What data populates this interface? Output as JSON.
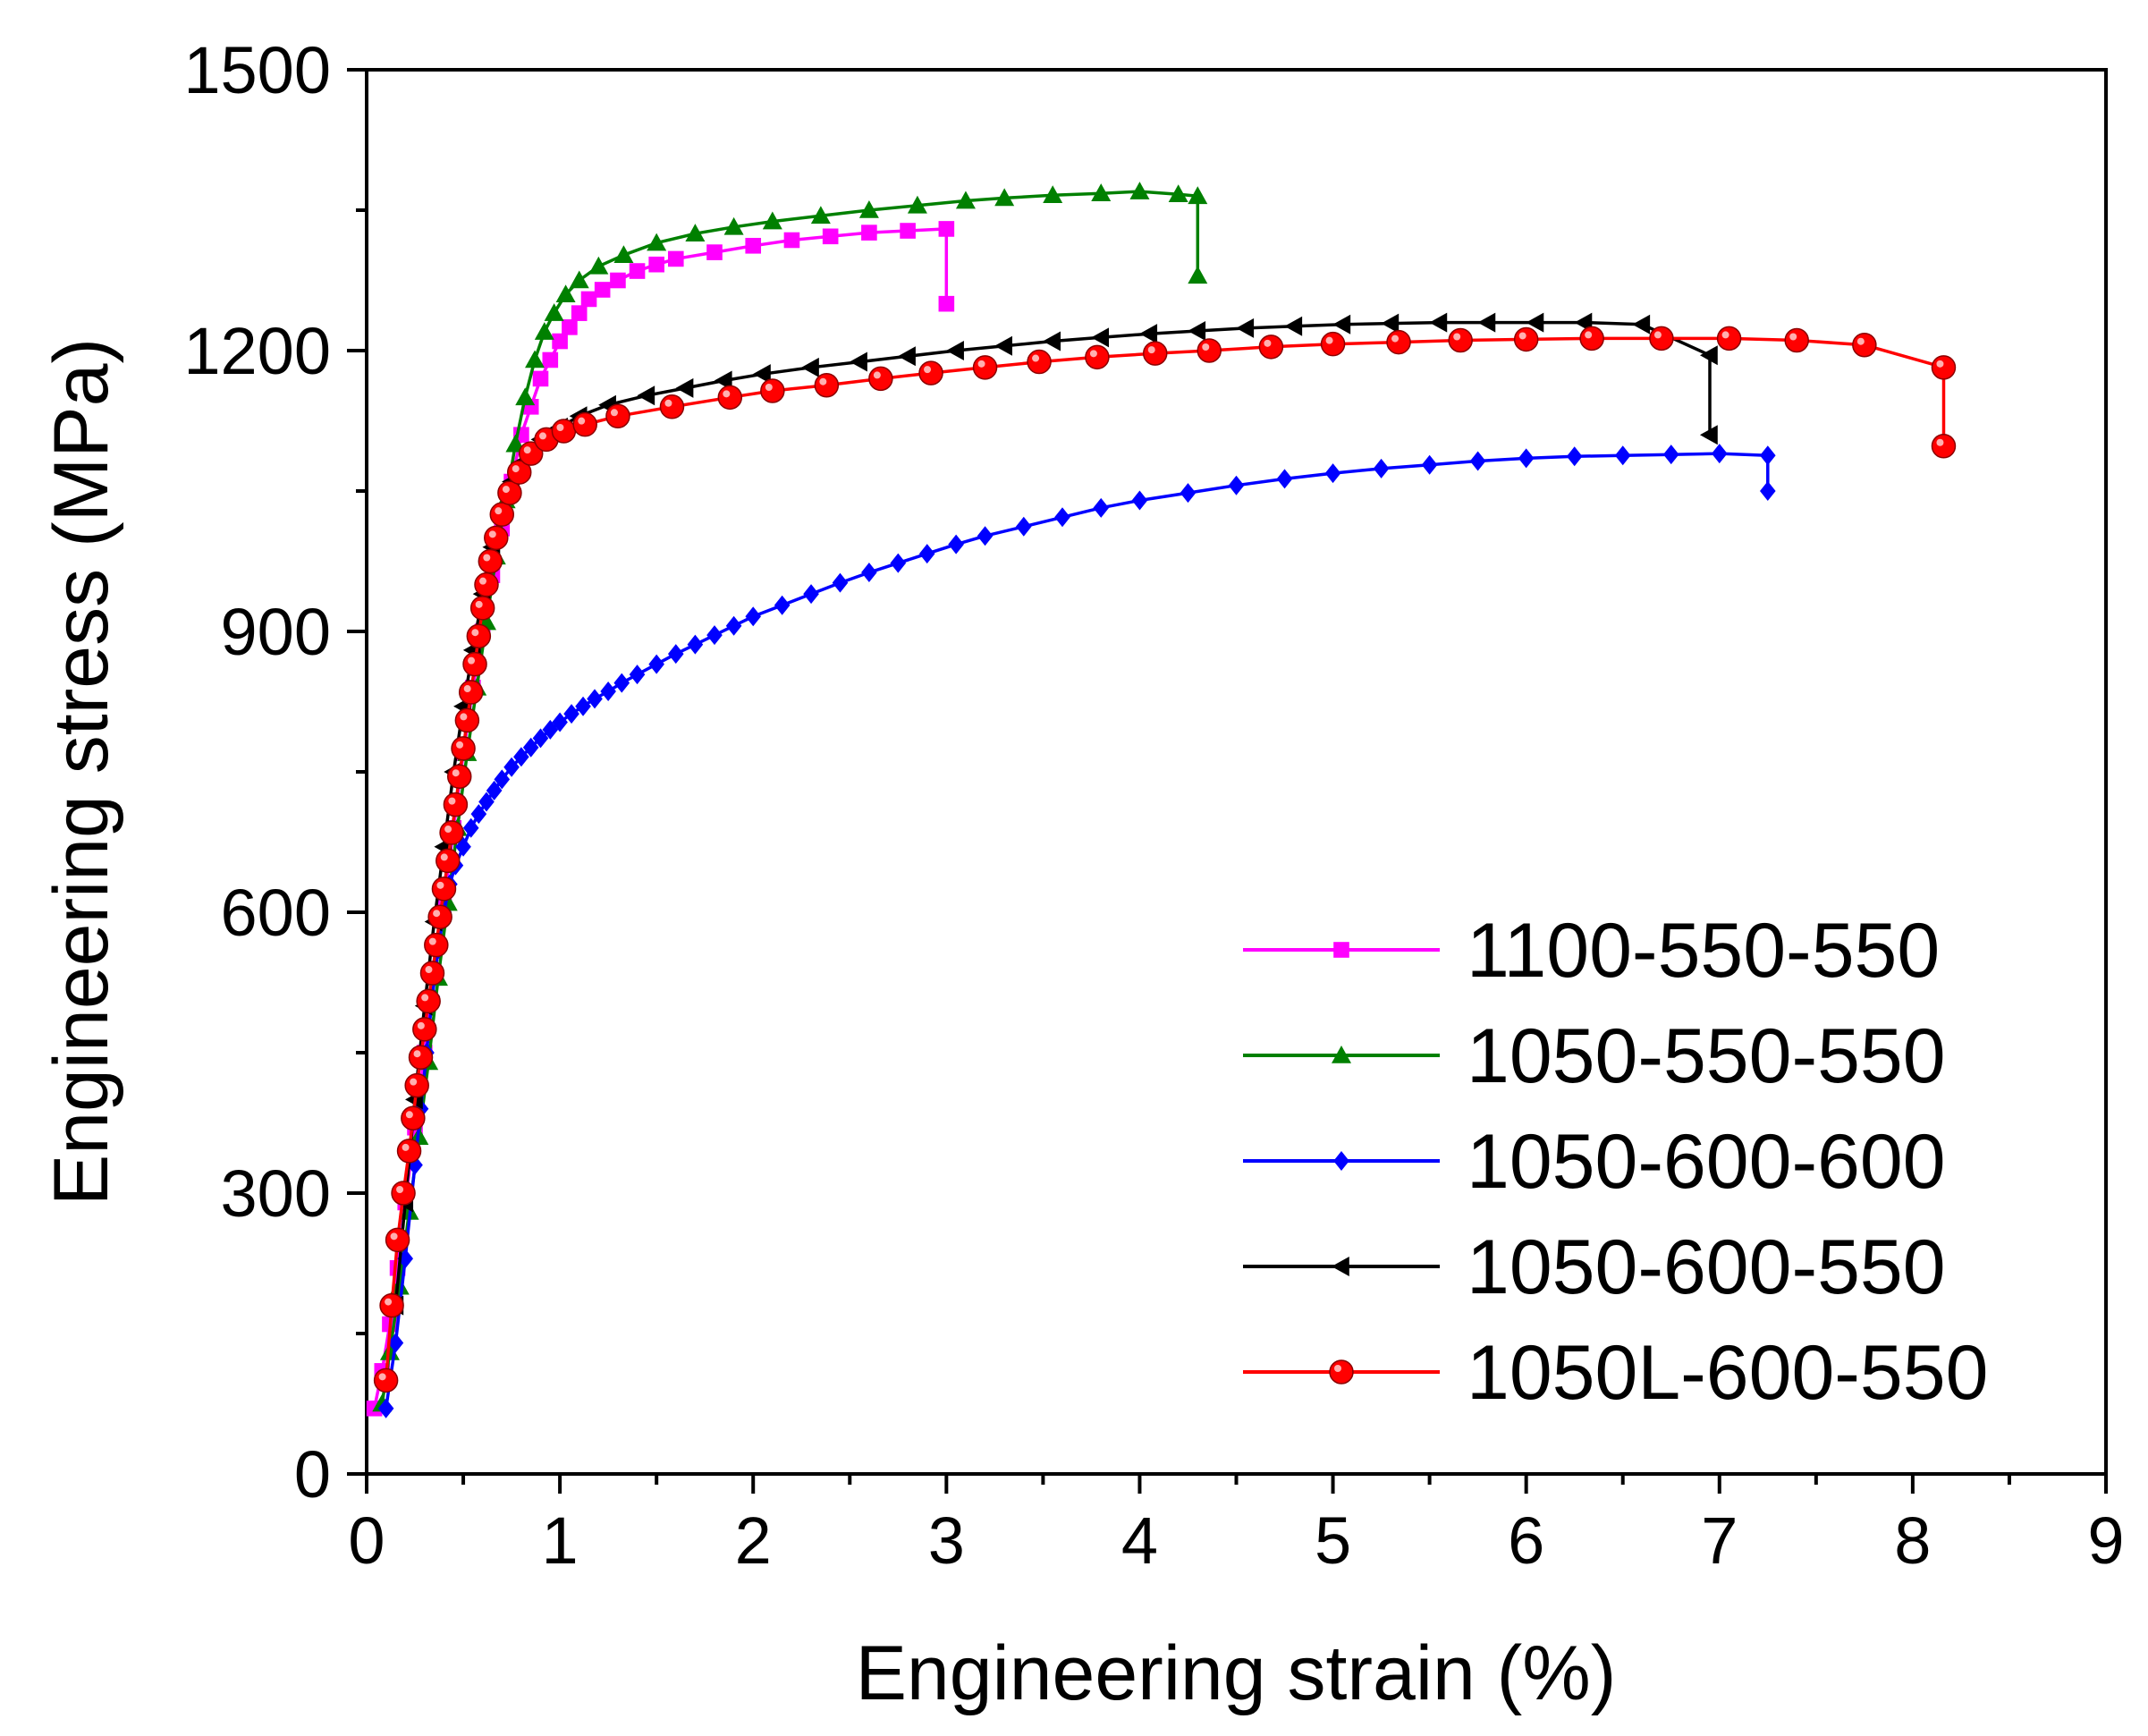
{
  "chart_data": {
    "type": "line",
    "title": "",
    "xlabel": "Engineering strain (%)",
    "ylabel": "Engineering stress (MPa)",
    "xlim": [
      0,
      9
    ],
    "ylim": [
      0,
      1500
    ],
    "xticks": [
      "0",
      "1",
      "2",
      "3",
      "4",
      "5",
      "6",
      "7",
      "8",
      "9"
    ],
    "yticks": [
      "0",
      "300",
      "600",
      "900",
      "1200",
      "1500"
    ],
    "legend_position": "bottom-right",
    "series": [
      {
        "name": "1100-550-550",
        "color": "#ff00ff",
        "marker": "square",
        "x": [
          0.04,
          0.08,
          0.12,
          0.16,
          0.2,
          0.25,
          0.3,
          0.35,
          0.4,
          0.45,
          0.5,
          0.55,
          0.6,
          0.65,
          0.7,
          0.75,
          0.8,
          0.85,
          0.9,
          0.95,
          1.0,
          1.05,
          1.1,
          1.15,
          1.22,
          1.3,
          1.4,
          1.5,
          1.6,
          1.8,
          2.0,
          2.2,
          2.4,
          2.6,
          2.8,
          3.0,
          3.0
        ],
        "y": [
          70,
          110,
          160,
          220,
          290,
          370,
          450,
          530,
          610,
          690,
          770,
          840,
          900,
          960,
          1010,
          1060,
          1110,
          1140,
          1170,
          1190,
          1210,
          1225,
          1240,
          1255,
          1265,
          1275,
          1285,
          1292,
          1298,
          1305,
          1312,
          1318,
          1322,
          1326,
          1328,
          1330,
          1250
        ]
      },
      {
        "name": "1050-550-550",
        "color": "#008000",
        "marker": "triangle-up",
        "x": [
          0.08,
          0.12,
          0.17,
          0.22,
          0.27,
          0.32,
          0.37,
          0.42,
          0.47,
          0.52,
          0.57,
          0.62,
          0.67,
          0.72,
          0.77,
          0.82,
          0.87,
          0.92,
          0.97,
          1.03,
          1.1,
          1.2,
          1.33,
          1.5,
          1.7,
          1.9,
          2.1,
          2.35,
          2.6,
          2.85,
          3.1,
          3.3,
          3.55,
          3.8,
          4.0,
          4.2,
          4.3,
          4.3
        ],
        "y": [
          75,
          130,
          200,
          280,
          360,
          440,
          530,
          610,
          690,
          770,
          840,
          910,
          980,
          1040,
          1100,
          1150,
          1190,
          1220,
          1240,
          1260,
          1275,
          1290,
          1302,
          1315,
          1325,
          1332,
          1338,
          1344,
          1350,
          1355,
          1360,
          1363,
          1366,
          1368,
          1370,
          1367,
          1365,
          1280
        ]
      },
      {
        "name": "1050-600-600",
        "color": "#0000ff",
        "marker": "diamond",
        "x": [
          0.1,
          0.15,
          0.2,
          0.25,
          0.28,
          0.31,
          0.34,
          0.37,
          0.4,
          0.43,
          0.46,
          0.5,
          0.54,
          0.58,
          0.62,
          0.66,
          0.7,
          0.75,
          0.8,
          0.85,
          0.9,
          0.95,
          1.0,
          1.06,
          1.12,
          1.18,
          1.25,
          1.32,
          1.4,
          1.5,
          1.6,
          1.7,
          1.8,
          1.9,
          2.0,
          2.15,
          2.3,
          2.45,
          2.6,
          2.75,
          2.9,
          3.05,
          3.2,
          3.4,
          3.6,
          3.8,
          4.0,
          4.25,
          4.5,
          4.75,
          5.0,
          5.25,
          5.5,
          5.75,
          6.0,
          6.25,
          6.5,
          6.75,
          7.0,
          7.25,
          7.25
        ],
        "y": [
          70,
          140,
          230,
          330,
          390,
          450,
          510,
          560,
          600,
          630,
          650,
          670,
          690,
          705,
          718,
          730,
          742,
          755,
          766,
          776,
          786,
          795,
          803,
          812,
          820,
          828,
          836,
          845,
          854,
          865,
          876,
          886,
          896,
          906,
          916,
          928,
          940,
          952,
          963,
          973,
          983,
          993,
          1002,
          1012,
          1022,
          1032,
          1040,
          1048,
          1056,
          1063,
          1069,
          1074,
          1078,
          1082,
          1085,
          1087,
          1088,
          1089,
          1090,
          1088,
          1050
        ]
      },
      {
        "name": "1050-600-550",
        "color": "#000000",
        "marker": "triangle-left",
        "x": [
          0.15,
          0.2,
          0.25,
          0.3,
          0.35,
          0.4,
          0.45,
          0.5,
          0.55,
          0.6,
          0.65,
          0.7,
          0.75,
          0.8,
          0.85,
          0.9,
          0.95,
          1.0,
          1.1,
          1.25,
          1.45,
          1.65,
          1.85,
          2.05,
          2.3,
          2.55,
          2.8,
          3.05,
          3.3,
          3.55,
          3.8,
          4.05,
          4.3,
          4.55,
          4.8,
          5.05,
          5.3,
          5.55,
          5.8,
          6.05,
          6.3,
          6.6,
          6.95,
          6.95
        ],
        "y": [
          180,
          290,
          400,
          500,
          590,
          670,
          750,
          820,
          880,
          940,
          990,
          1030,
          1060,
          1080,
          1095,
          1105,
          1112,
          1118,
          1130,
          1142,
          1152,
          1160,
          1168,
          1175,
          1182,
          1188,
          1194,
          1200,
          1205,
          1210,
          1214,
          1218,
          1221,
          1224,
          1226,
          1228,
          1229,
          1230,
          1230,
          1230,
          1230,
          1228,
          1195,
          1110
        ]
      },
      {
        "name": "1050L-600-550",
        "color": "#ff0000",
        "marker": "circle",
        "x": [
          0.1,
          0.13,
          0.16,
          0.19,
          0.22,
          0.24,
          0.26,
          0.28,
          0.3,
          0.32,
          0.34,
          0.36,
          0.38,
          0.4,
          0.42,
          0.44,
          0.46,
          0.48,
          0.5,
          0.52,
          0.54,
          0.56,
          0.58,
          0.6,
          0.62,
          0.64,
          0.67,
          0.7,
          0.74,
          0.79,
          0.85,
          0.93,
          1.02,
          1.13,
          1.3,
          1.58,
          1.88,
          2.1,
          2.38,
          2.66,
          2.92,
          3.2,
          3.48,
          3.78,
          4.08,
          4.36,
          4.68,
          5.0,
          5.34,
          5.66,
          6.0,
          6.34,
          6.7,
          7.05,
          7.4,
          7.75,
          8.16,
          8.16
        ],
        "y": [
          100,
          180,
          250,
          300,
          345,
          380,
          415,
          445,
          475,
          505,
          535,
          565,
          595,
          625,
          655,
          685,
          715,
          745,
          775,
          805,
          835,
          865,
          895,
          925,
          950,
          975,
          1000,
          1025,
          1048,
          1070,
          1090,
          1105,
          1114,
          1121,
          1130,
          1140,
          1150,
          1157,
          1163,
          1170,
          1176,
          1182,
          1188,
          1193,
          1197,
          1200,
          1204,
          1207,
          1209,
          1211,
          1212,
          1213,
          1213,
          1213,
          1211,
          1206,
          1182,
          1098
        ]
      }
    ]
  }
}
